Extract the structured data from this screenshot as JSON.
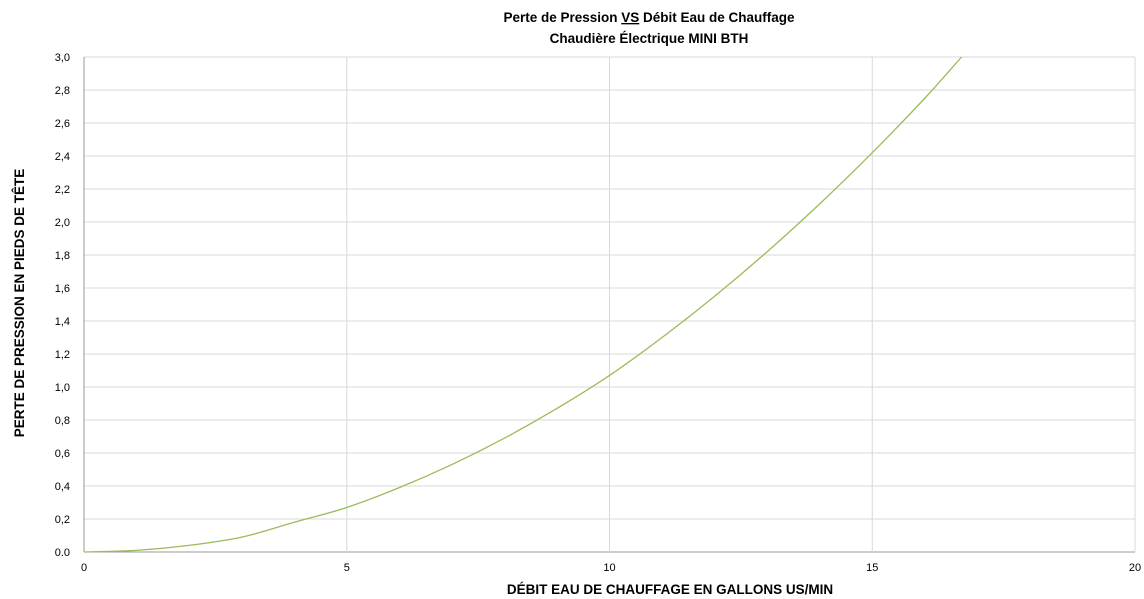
{
  "chart_data": {
    "type": "line",
    "title_line1": {
      "prefix": "Perte de Pression ",
      "underlined": "VS",
      "suffix": " Débit Eau de Chauffage"
    },
    "title_line2": "Chaudière Électrique MINI BTH",
    "xlabel": "DÉBIT EAU DE CHAUFFAGE EN GALLONS US/MIN",
    "ylabel": "PERTE DE PRESSION EN PIEDS DE TÊTE",
    "xlim": [
      0,
      20
    ],
    "ylim": [
      0,
      3.0
    ],
    "x_ticks": [
      "0",
      "5",
      "10",
      "15",
      "20"
    ],
    "y_ticks": [
      "0.0",
      "0,2",
      "0,4",
      "0,6",
      "0,8",
      "1,0",
      "1,2",
      "1,4",
      "1,6",
      "1,8",
      "2,0",
      "2,2",
      "2,4",
      "2,6",
      "2,8",
      "3,0"
    ],
    "grid": {
      "horizontal": true,
      "vertical": true
    },
    "line_color": "#9bbb59",
    "series": [
      {
        "x": [
          0,
          1,
          2,
          3,
          4,
          5,
          6,
          7,
          8,
          9,
          10,
          11,
          12,
          13,
          14,
          15,
          16,
          16.7
        ],
        "y": [
          0,
          0.01,
          0.04,
          0.09,
          0.18,
          0.27,
          0.39,
          0.53,
          0.69,
          0.87,
          1.07,
          1.3,
          1.55,
          1.82,
          2.11,
          2.42,
          2.75,
          3.0
        ]
      }
    ]
  }
}
